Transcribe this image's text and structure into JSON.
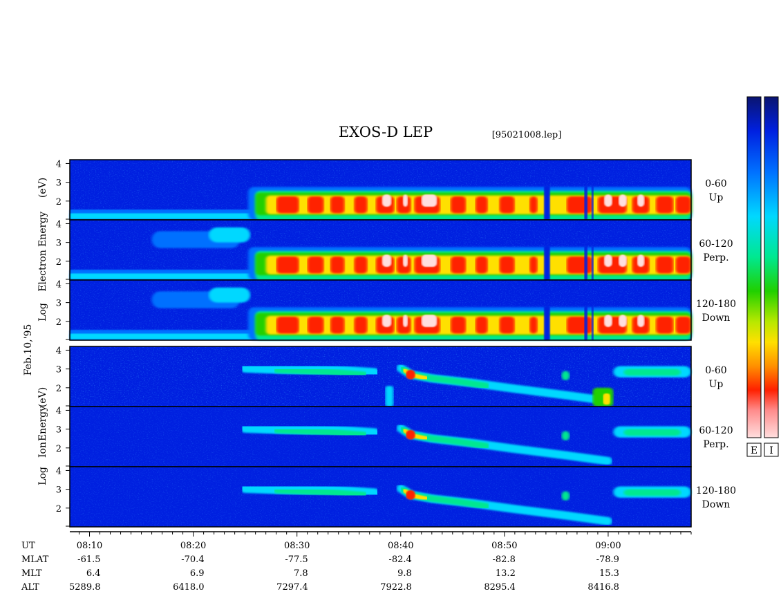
{
  "title": "EXOS-D LEP",
  "file": "[95021008.lep]",
  "date_label": "Feb.10,'95",
  "chart_data": {
    "type": "heatmap",
    "x_label_rows": [
      "UT",
      "MLAT",
      "MLT",
      "ALT"
    ],
    "ut": [
      "08:10",
      "08:20",
      "08:30",
      "08:40",
      "08:50",
      "09:00"
    ],
    "ut_minutes": [
      10,
      20,
      30,
      40,
      50,
      60
    ],
    "xlim_minutes": [
      8.1,
      68.0
    ],
    "mlat": [
      "-61.5",
      "-70.4",
      "-77.5",
      "-82.4",
      "-82.8",
      "-78.9"
    ],
    "mlt": [
      "6.4",
      "6.9",
      "7.8",
      "9.8",
      "13.2",
      "15.3"
    ],
    "alt": [
      "5289.8",
      "6418.0",
      "7297.4",
      "7922.8",
      "8295.4",
      "8416.8"
    ],
    "y_ticks": [
      "4",
      "3",
      "2"
    ],
    "ylim_log_ev": [
      1,
      4.2
    ],
    "groups": [
      {
        "species": "Electron",
        "ylabel": [
          "Log",
          "Electron",
          "Energy",
          "(eV)"
        ],
        "panels": [
          {
            "pitch": "0-60",
            "dir": "Up"
          },
          {
            "pitch": "60-120",
            "dir": "Perp."
          },
          {
            "pitch": "120-180",
            "dir": "Down"
          }
        ]
      },
      {
        "species": "Ion",
        "ylabel": [
          "Log",
          "Ion",
          "Energy",
          "(eV)"
        ],
        "panels": [
          {
            "pitch": "0-60",
            "dir": "Up"
          },
          {
            "pitch": "60-120",
            "dir": "Perp."
          },
          {
            "pitch": "120-180",
            "dir": "Down"
          }
        ]
      }
    ],
    "colorbar": {
      "labels": [
        "E",
        "I"
      ],
      "scale": [
        "#0a1470",
        "#0020e0",
        "#0070ff",
        "#00d8ff",
        "#00e890",
        "#20d000",
        "#b8e800",
        "#ffe000",
        "#ff9000",
        "#ff2000",
        "#ff8c8c",
        "#ffdede"
      ]
    }
  }
}
